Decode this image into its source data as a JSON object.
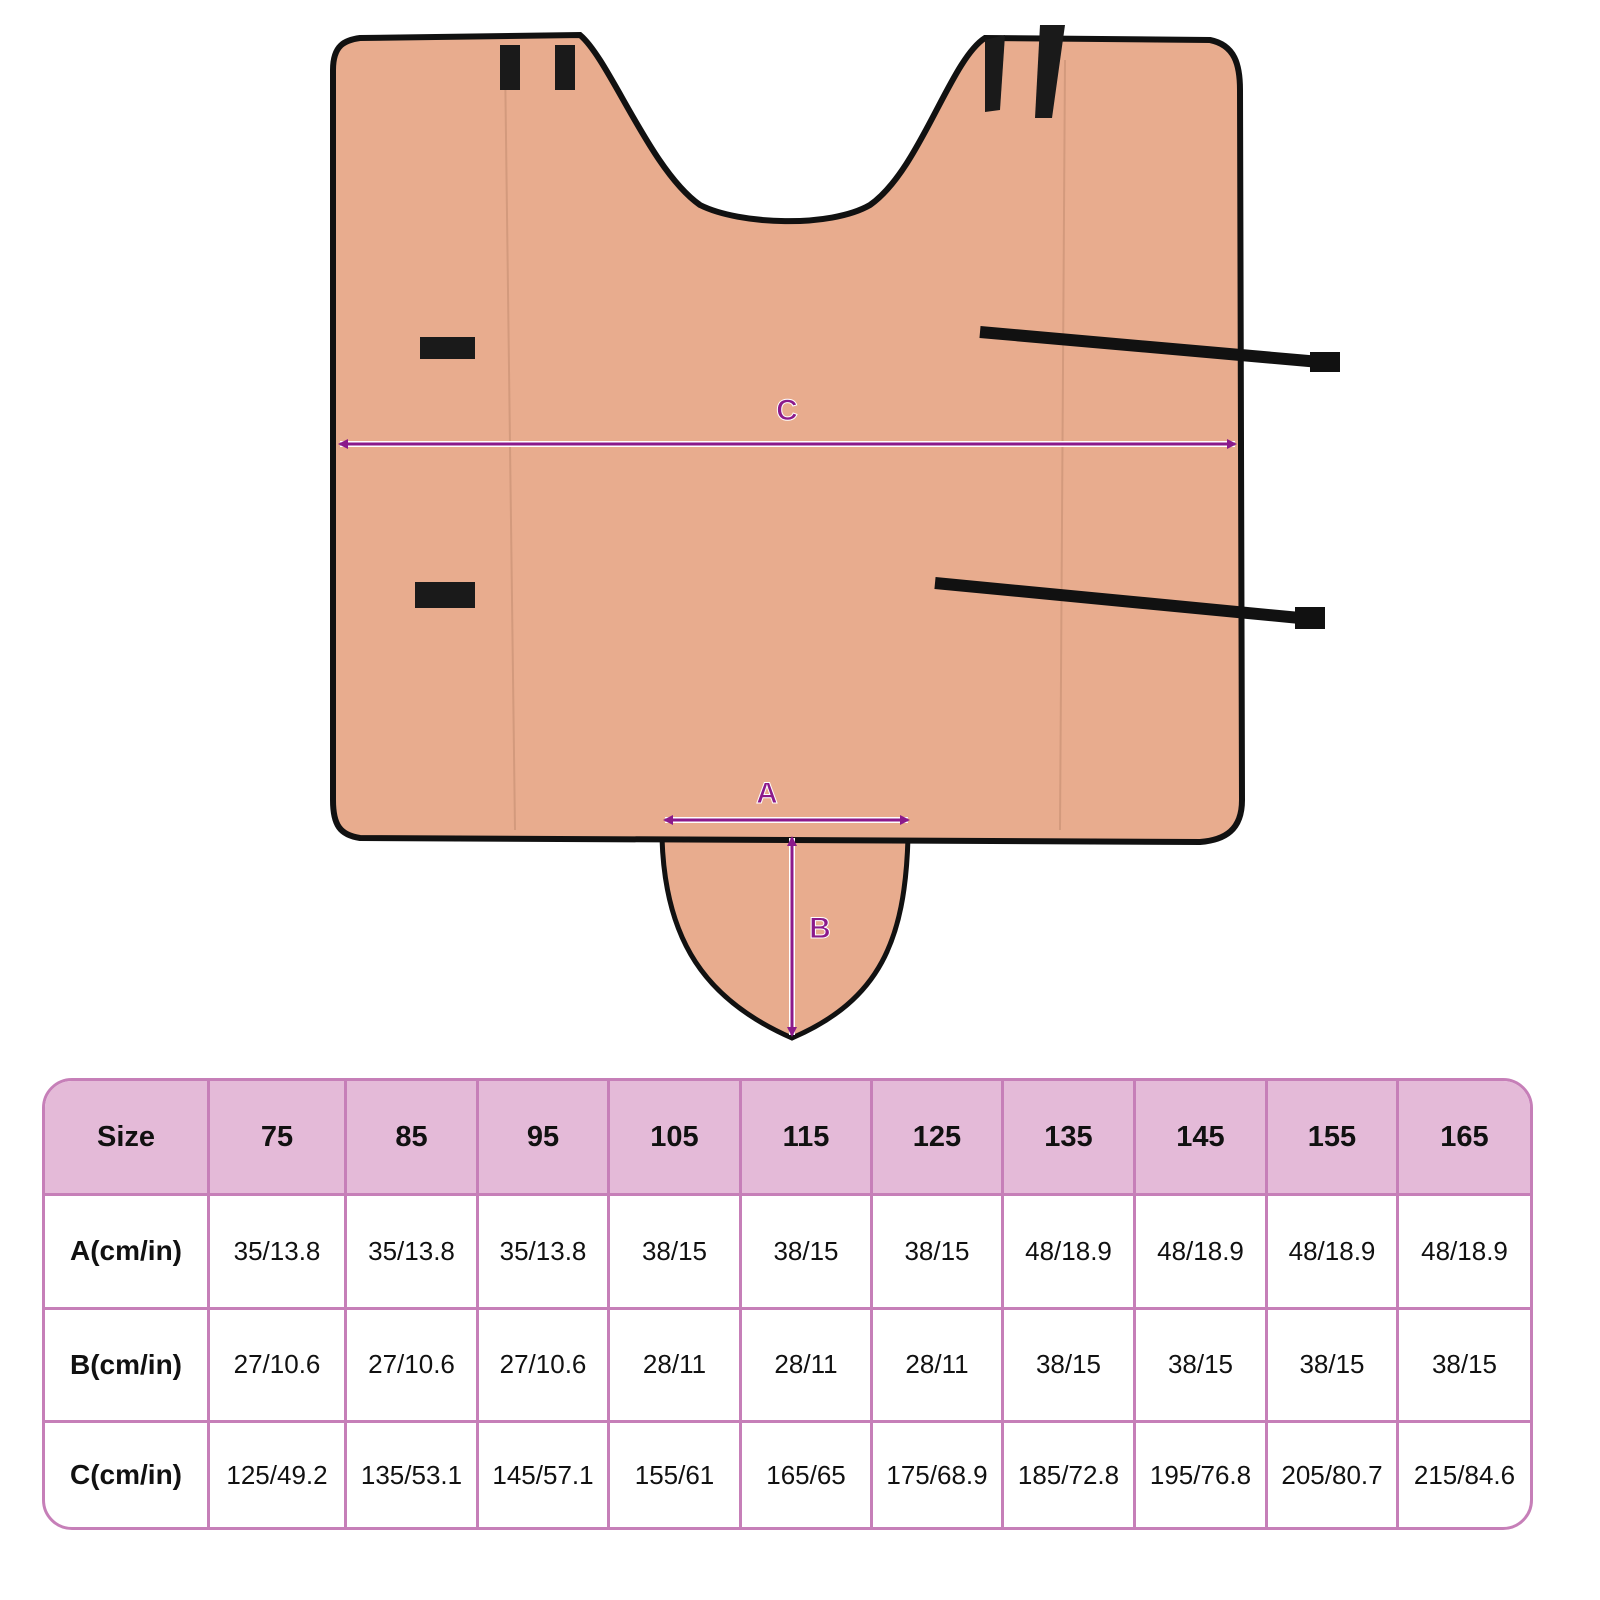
{
  "diagram": {
    "labels": {
      "c": "C",
      "a": "A",
      "b": "B"
    },
    "colors": {
      "fabric": "#e8ac8e",
      "trim": "#111111",
      "arrow": "#8b1a8b"
    }
  },
  "size_table": {
    "header": [
      "Size",
      "75",
      "85",
      "95",
      "105",
      "115",
      "125",
      "135",
      "145",
      "155",
      "165"
    ],
    "rows": [
      {
        "label": "A(cm/in)",
        "values": [
          "35/13.8",
          "35/13.8",
          "35/13.8",
          "38/15",
          "38/15",
          "38/15",
          "48/18.9",
          "48/18.9",
          "48/18.9",
          "48/18.9"
        ]
      },
      {
        "label": "B(cm/in)",
        "values": [
          "27/10.6",
          "27/10.6",
          "27/10.6",
          "28/11",
          "28/11",
          "28/11",
          "38/15",
          "38/15",
          "38/15",
          "38/15"
        ]
      },
      {
        "label": "C(cm/in)",
        "values": [
          "125/49.2",
          "135/53.1",
          "145/57.1",
          "155/61",
          "165/65",
          "175/68.9",
          "185/72.8",
          "195/76.8",
          "205/80.7",
          "215/84.6"
        ]
      }
    ],
    "colors": {
      "header_bg": "#e4bad8",
      "border": "#c67fb8"
    }
  }
}
